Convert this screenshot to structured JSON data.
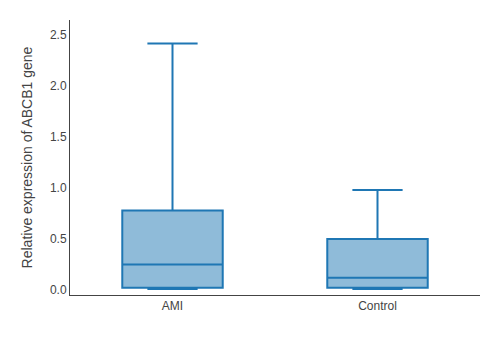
{
  "chart_data": {
    "type": "box",
    "categories": [
      "AMI",
      "Control"
    ],
    "stats": [
      {
        "whislo": 0.01,
        "q1": 0.02,
        "med": 0.25,
        "q3": 0.78,
        "whishi": 2.42
      },
      {
        "whislo": 0.01,
        "q1": 0.02,
        "med": 0.12,
        "q3": 0.5,
        "whishi": 0.98
      }
    ],
    "ylabel": "Relative expression of ABCB1 gene",
    "ylim": [
      -0.05,
      2.65
    ],
    "yticks": [
      {
        "value": 0,
        "label": "0.0"
      },
      0.5,
      {
        "value": 1,
        "label": "1.0"
      },
      1.5,
      {
        "value": 2,
        "label": "2.0"
      },
      2.5
    ],
    "grid": false
  }
}
